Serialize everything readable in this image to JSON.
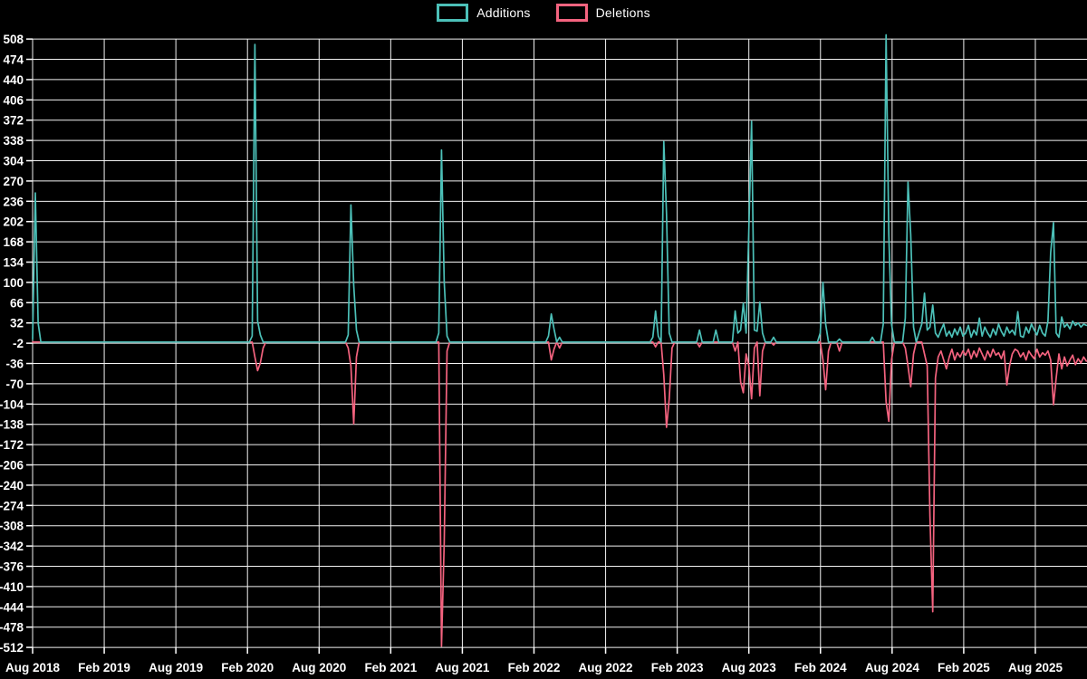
{
  "legend": {
    "additions_label": "Additions",
    "deletions_label": "Deletions"
  },
  "colors": {
    "additions": "#4CC0B8",
    "deletions": "#F4637F",
    "grid": "#f2f2f2",
    "background": "#000000",
    "text": "#ffffff"
  },
  "chart_data": {
    "type": "line",
    "title": "",
    "xlabel": "",
    "ylabel": "",
    "legend_position": "top-center",
    "grid": true,
    "ylim": [
      -512,
      508
    ],
    "y_tick_step": 34,
    "y_ticks": [
      508,
      474,
      440,
      406,
      372,
      338,
      304,
      270,
      236,
      202,
      168,
      134,
      100,
      66,
      32,
      -2,
      -36,
      -70,
      -104,
      -138,
      -172,
      -206,
      -240,
      -274,
      -308,
      -342,
      -376,
      -410,
      -444,
      -478,
      -512
    ],
    "x_tick_labels": [
      "Aug 2018",
      "Feb 2019",
      "Aug 2019",
      "Feb 2020",
      "Aug 2020",
      "Feb 2021",
      "Aug 2021",
      "Feb 2022",
      "Aug 2022",
      "Feb 2023",
      "Aug 2023",
      "Feb 2024",
      "Aug 2024",
      "Feb 2025",
      "Aug 2025"
    ],
    "x_unit": "week",
    "weeks_per_tick": 26.1,
    "total_weeks": 385,
    "default_value": 0,
    "series": [
      {
        "name": "Additions",
        "color": "#4CC0B8",
        "points": [
          [
            0,
            5
          ],
          [
            1,
            250
          ],
          [
            2,
            32
          ],
          [
            80,
            10
          ],
          [
            81,
            499
          ],
          [
            82,
            35
          ],
          [
            83,
            12
          ],
          [
            115,
            12
          ],
          [
            116,
            230
          ],
          [
            117,
            95
          ],
          [
            118,
            20
          ],
          [
            148,
            15
          ],
          [
            149,
            322
          ],
          [
            150,
            100
          ],
          [
            151,
            10
          ],
          [
            188,
            10
          ],
          [
            189,
            47
          ],
          [
            190,
            22
          ],
          [
            192,
            8
          ],
          [
            226,
            8
          ],
          [
            227,
            52
          ],
          [
            228,
            10
          ],
          [
            230,
            336
          ],
          [
            231,
            215
          ],
          [
            232,
            15
          ],
          [
            243,
            20
          ],
          [
            249,
            20
          ],
          [
            256,
            52
          ],
          [
            257,
            15
          ],
          [
            258,
            20
          ],
          [
            259,
            65
          ],
          [
            260,
            15
          ],
          [
            261,
            190
          ],
          [
            262,
            370
          ],
          [
            263,
            20
          ],
          [
            264,
            18
          ],
          [
            265,
            67
          ],
          [
            266,
            15
          ],
          [
            270,
            8
          ],
          [
            287,
            15
          ],
          [
            288,
            100
          ],
          [
            289,
            30
          ],
          [
            294,
            5
          ],
          [
            306,
            8
          ],
          [
            310,
            30
          ],
          [
            311,
            515
          ],
          [
            312,
            180
          ],
          [
            313,
            30
          ],
          [
            318,
            40
          ],
          [
            319,
            268
          ],
          [
            320,
            180
          ],
          [
            321,
            25
          ],
          [
            323,
            15
          ],
          [
            324,
            30
          ],
          [
            325,
            82
          ],
          [
            326,
            20
          ],
          [
            327,
            25
          ],
          [
            328,
            62
          ],
          [
            329,
            15
          ],
          [
            330,
            8
          ],
          [
            331,
            20
          ],
          [
            332,
            30
          ],
          [
            333,
            10
          ],
          [
            334,
            18
          ],
          [
            335,
            8
          ],
          [
            336,
            22
          ],
          [
            337,
            12
          ],
          [
            338,
            25
          ],
          [
            339,
            10
          ],
          [
            340,
            15
          ],
          [
            341,
            28
          ],
          [
            342,
            8
          ],
          [
            343,
            20
          ],
          [
            344,
            12
          ],
          [
            345,
            40
          ],
          [
            346,
            10
          ],
          [
            347,
            25
          ],
          [
            348,
            15
          ],
          [
            349,
            8
          ],
          [
            350,
            22
          ],
          [
            351,
            12
          ],
          [
            352,
            30
          ],
          [
            353,
            18
          ],
          [
            354,
            10
          ],
          [
            355,
            25
          ],
          [
            356,
            15
          ],
          [
            357,
            20
          ],
          [
            358,
            12
          ],
          [
            359,
            51
          ],
          [
            360,
            10
          ],
          [
            361,
            8
          ],
          [
            362,
            25
          ],
          [
            363,
            15
          ],
          [
            364,
            30
          ],
          [
            365,
            20
          ],
          [
            366,
            12
          ],
          [
            367,
            28
          ],
          [
            368,
            15
          ],
          [
            369,
            10
          ],
          [
            370,
            35
          ],
          [
            371,
            150
          ],
          [
            372,
            200
          ],
          [
            373,
            15
          ],
          [
            374,
            8
          ],
          [
            375,
            42
          ],
          [
            376,
            25
          ],
          [
            377,
            30
          ],
          [
            378,
            22
          ],
          [
            379,
            35
          ],
          [
            380,
            28
          ],
          [
            381,
            32
          ],
          [
            382,
            25
          ],
          [
            383,
            30
          ],
          [
            384,
            28
          ]
        ]
      },
      {
        "name": "Deletions",
        "color": "#F4637F",
        "points": [
          [
            81,
            -25
          ],
          [
            82,
            -48
          ],
          [
            83,
            -35
          ],
          [
            84,
            -10
          ],
          [
            115,
            -10
          ],
          [
            116,
            -40
          ],
          [
            117,
            -137
          ],
          [
            118,
            -25
          ],
          [
            149,
            -510
          ],
          [
            150,
            -336
          ],
          [
            151,
            -15
          ],
          [
            189,
            -30
          ],
          [
            190,
            -12
          ],
          [
            192,
            -10
          ],
          [
            227,
            -8
          ],
          [
            230,
            -55
          ],
          [
            231,
            -143
          ],
          [
            232,
            -95
          ],
          [
            233,
            -10
          ],
          [
            243,
            -8
          ],
          [
            256,
            -15
          ],
          [
            258,
            -67
          ],
          [
            259,
            -85
          ],
          [
            260,
            -20
          ],
          [
            261,
            -40
          ],
          [
            262,
            -95
          ],
          [
            263,
            -10
          ],
          [
            265,
            -90
          ],
          [
            266,
            -15
          ],
          [
            270,
            -5
          ],
          [
            288,
            -30
          ],
          [
            289,
            -80
          ],
          [
            290,
            -15
          ],
          [
            294,
            -15
          ],
          [
            311,
            -100
          ],
          [
            312,
            -133
          ],
          [
            313,
            -30
          ],
          [
            318,
            -10
          ],
          [
            319,
            -40
          ],
          [
            320,
            -75
          ],
          [
            321,
            -20
          ],
          [
            325,
            -20
          ],
          [
            326,
            -40
          ],
          [
            327,
            -291
          ],
          [
            328,
            -452
          ],
          [
            329,
            -60
          ],
          [
            330,
            -25
          ],
          [
            331,
            -15
          ],
          [
            332,
            -30
          ],
          [
            333,
            -45
          ],
          [
            334,
            -25
          ],
          [
            335,
            -12
          ],
          [
            336,
            -30
          ],
          [
            337,
            -18
          ],
          [
            338,
            -25
          ],
          [
            339,
            -15
          ],
          [
            340,
            -22
          ],
          [
            341,
            -12
          ],
          [
            342,
            -28
          ],
          [
            343,
            -15
          ],
          [
            344,
            -25
          ],
          [
            345,
            -10
          ],
          [
            346,
            -20
          ],
          [
            347,
            -30
          ],
          [
            348,
            -15
          ],
          [
            349,
            -25
          ],
          [
            350,
            -12
          ],
          [
            351,
            -22
          ],
          [
            352,
            -18
          ],
          [
            353,
            -28
          ],
          [
            354,
            -15
          ],
          [
            355,
            -72
          ],
          [
            356,
            -40
          ],
          [
            357,
            -20
          ],
          [
            358,
            -12
          ],
          [
            359,
            -15
          ],
          [
            360,
            -25
          ],
          [
            361,
            -18
          ],
          [
            362,
            -30
          ],
          [
            363,
            -15
          ],
          [
            364,
            -22
          ],
          [
            365,
            -28
          ],
          [
            366,
            -12
          ],
          [
            367,
            -25
          ],
          [
            368,
            -18
          ],
          [
            369,
            -22
          ],
          [
            370,
            -15
          ],
          [
            371,
            -30
          ],
          [
            372,
            -105
          ],
          [
            373,
            -60
          ],
          [
            374,
            -20
          ],
          [
            375,
            -45
          ],
          [
            376,
            -25
          ],
          [
            377,
            -40
          ],
          [
            378,
            -30
          ],
          [
            379,
            -22
          ],
          [
            380,
            -38
          ],
          [
            381,
            -28
          ],
          [
            382,
            -35
          ],
          [
            383,
            -25
          ],
          [
            384,
            -32
          ]
        ]
      }
    ]
  }
}
